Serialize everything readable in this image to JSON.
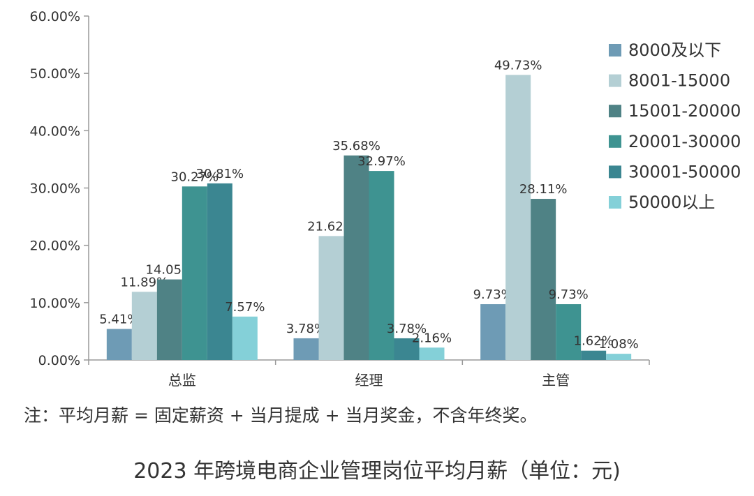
{
  "chart_data": {
    "type": "bar",
    "title": "2023 年跨境电商企业管理岗位平均月薪（单位：元)",
    "note": "注：平均月薪 = 固定薪资 + 当月提成 + 当月奖金，不含年终奖。",
    "categories": [
      "总监",
      "经理",
      "主管"
    ],
    "ylim": [
      0,
      60
    ],
    "yticks": [
      "0.00%",
      "10.00%",
      "20.00%",
      "30.00%",
      "40.00%",
      "50.00%",
      "60.00%"
    ],
    "legend_position": "top-right",
    "grid": false,
    "series": [
      {
        "name": "8000及以下",
        "color": "#6e9bb5",
        "values": [
          5.41,
          3.78,
          9.73
        ],
        "labels": [
          "5.41%",
          "3.78%",
          "9.73%"
        ]
      },
      {
        "name": "8001-15000",
        "color": "#b4cfd4",
        "values": [
          11.89,
          21.62,
          49.73
        ],
        "labels": [
          "11.89%",
          "21.62%",
          "49.73%"
        ]
      },
      {
        "name": "15001-20000",
        "color": "#4f8285",
        "values": [
          14.05,
          35.68,
          28.11
        ],
        "labels": [
          "14.05%",
          "35.68%",
          "28.11%"
        ]
      },
      {
        "name": "20001-30000",
        "color": "#3e9391",
        "values": [
          30.27,
          32.97,
          9.73
        ],
        "labels": [
          "30.27%",
          "32.97%",
          "9.73%"
        ]
      },
      {
        "name": "30001-50000",
        "color": "#3b8691",
        "values": [
          30.81,
          3.78,
          1.62
        ],
        "labels": [
          "30.81%",
          "3.78%",
          "1.62%"
        ]
      },
      {
        "name": "50000以上",
        "color": "#84d0d8",
        "values": [
          7.57,
          2.16,
          1.08
        ],
        "labels": [
          "7.57%",
          "2.16%",
          "1.08%"
        ]
      }
    ]
  }
}
